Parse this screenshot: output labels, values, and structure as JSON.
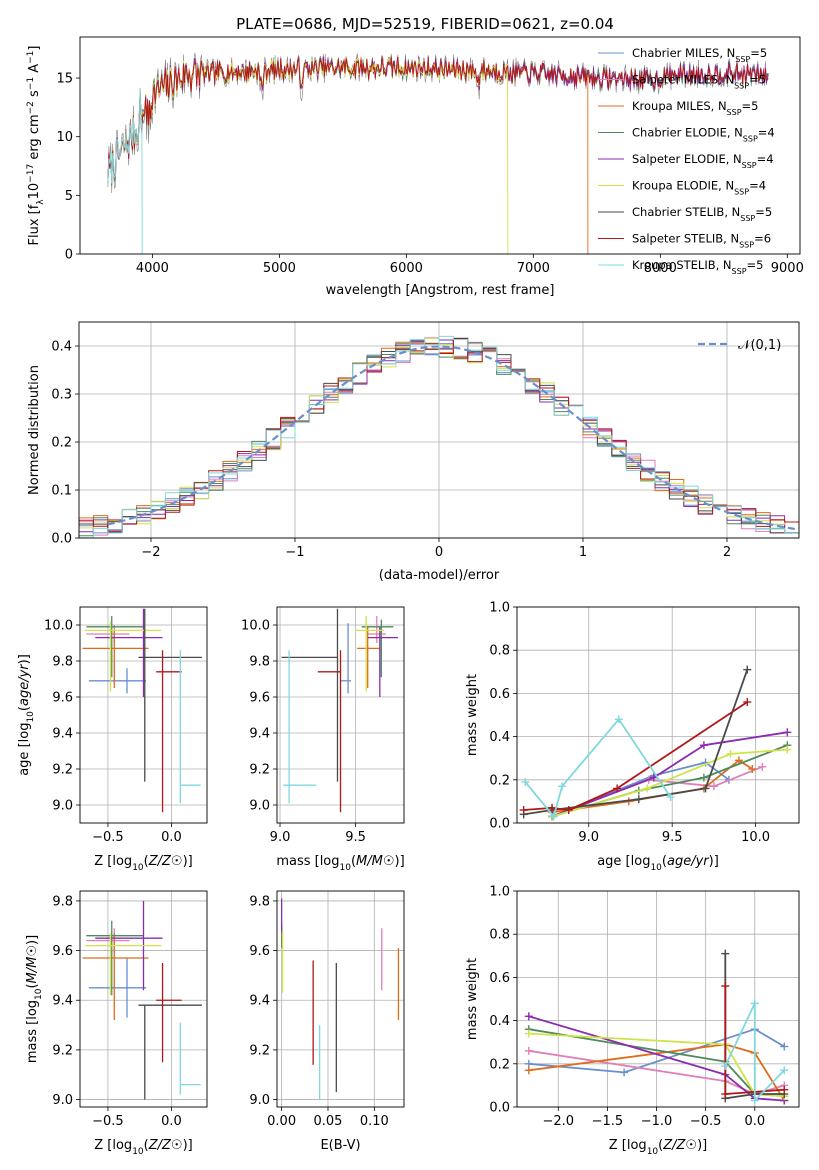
{
  "title": "PLATE=0686, MJD=52519, FIBERID=0621, z=0.04",
  "colors": [
    "#6a8fcf",
    "#e07fb8",
    "#e06c1a",
    "#4f8a5a",
    "#8a2bb0",
    "#cfe34a",
    "#4a4a4a",
    "#b01818",
    "#7fd8df"
  ],
  "spectrum_colors": [
    "#6a8fcf",
    "#e07fb8",
    "#e06c1a",
    "#4f8a5a",
    "#8a2bb0",
    "#cfe34a",
    "#808080",
    "#b01818",
    "#7fd8df"
  ],
  "legend": [
    {
      "label": "Chabrier MILES, N",
      "sub": "SSP",
      "suffix": "=5"
    },
    {
      "label": "Salpeter MILES, N",
      "sub": "SSP",
      "suffix": "=5"
    },
    {
      "label": "Kroupa MILES, N",
      "sub": "SSP",
      "suffix": "=5"
    },
    {
      "label": "Chabrier ELODIE, N",
      "sub": "SSP",
      "suffix": "=4"
    },
    {
      "label": "Salpeter ELODIE, N",
      "sub": "SSP",
      "suffix": "=4"
    },
    {
      "label": "Kroupa ELODIE, N",
      "sub": "SSP",
      "suffix": "=4"
    },
    {
      "label": "Chabrier STELIB, N",
      "sub": "SSP",
      "suffix": "=5"
    },
    {
      "label": "Salpeter STELIB, N",
      "sub": "SSP",
      "suffix": "=6"
    },
    {
      "label": "Kroupa STELIB, N",
      "sub": "SSP",
      "suffix": "=5"
    }
  ],
  "chart_data": [
    {
      "id": "spectrum",
      "type": "line",
      "title": "PLATE=0686, MJD=52519, FIBERID=0621, z=0.04",
      "xlabel": "wavelength [Angstrom, rest frame]",
      "ylabel_parts": [
        "Flux [f",
        "λ",
        "10",
        "−17",
        " erg cm",
        "−2",
        " s",
        "−1",
        " A",
        "−1",
        "]"
      ],
      "xlim": [
        3430,
        9100
      ],
      "ylim": [
        0,
        18.5
      ],
      "xticks": [
        4000,
        5000,
        6000,
        7000,
        8000,
        9000
      ],
      "yticks": [
        0,
        5,
        10,
        15
      ],
      "wave_range": [
        3650,
        8850
      ],
      "drops": [
        {
          "series": 8,
          "x": 3920
        },
        {
          "series": 5,
          "x": 6800
        },
        {
          "series": 2,
          "x": 7430
        }
      ],
      "legend_position": "upper right",
      "grid": false
    },
    {
      "id": "residuals",
      "type": "line",
      "xlabel": "(data-model)/error",
      "ylabel": "Normed distribution",
      "xlim": [
        -2.5,
        2.5
      ],
      "ylim": [
        0,
        0.45
      ],
      "xticks": [
        -2,
        -1,
        0,
        1,
        2
      ],
      "xtick_labels": [
        "−2",
        "−1",
        "0",
        "1",
        "2"
      ],
      "yticks": [
        0.0,
        0.1,
        0.2,
        0.3,
        0.4
      ],
      "ytick_labels": [
        "0.0",
        "0.1",
        "0.2",
        "0.3",
        "0.4"
      ],
      "bin_width": 0.1,
      "reference_curve": "normal(0,1)",
      "legend": "𝒩(0,1)",
      "legend_position": "upper right",
      "grid": true
    },
    {
      "id": "age_vs_Z",
      "type": "scatter",
      "xlabel": "Z [log10(Z/Z☉)]",
      "ylabel": "age [log10(age/yr)]",
      "xlim": [
        -0.72,
        0.28
      ],
      "ylim": [
        8.9,
        10.1
      ],
      "xticks": [
        -0.5,
        0.0
      ],
      "xtick_labels": [
        "−0.5",
        "0.0"
      ],
      "yticks": [
        9.0,
        9.2,
        9.4,
        9.6,
        9.8,
        10.0
      ],
      "ytick_labels": [
        "9.0",
        "9.2",
        "9.4",
        "9.6",
        "9.8",
        "10.0"
      ],
      "points": [
        {
          "x": -0.35,
          "xerr": [
            0.3,
            0.15
          ],
          "y": 9.69,
          "yerr": [
            0.07,
            0.07
          ],
          "c": 0
        },
        {
          "x": -0.45,
          "xerr": [
            0.22,
            0.12
          ],
          "y": 9.95,
          "yerr": [
            0.05,
            0.05
          ],
          "c": 1
        },
        {
          "x": -0.45,
          "xerr": [
            0.25,
            0.27
          ],
          "y": 9.87,
          "yerr": [
            0.22,
            0.1
          ],
          "c": 2
        },
        {
          "x": -0.47,
          "xerr": [
            0.2,
            0.25
          ],
          "y": 9.99,
          "yerr": [
            0.28,
            0.06
          ],
          "c": 3
        },
        {
          "x": -0.22,
          "xerr": [
            0.38,
            0.15
          ],
          "y": 9.93,
          "yerr": [
            0.33,
            0.16
          ],
          "c": 4
        },
        {
          "x": -0.48,
          "xerr": [
            0.2,
            0.4
          ],
          "y": 9.97,
          "yerr": [
            0.34,
            0.05
          ],
          "c": 5
        },
        {
          "x": -0.21,
          "xerr": [
            0.05,
            0.45
          ],
          "y": 9.82,
          "yerr": [
            0.69,
            0.27
          ],
          "c": 6
        },
        {
          "x": -0.07,
          "xerr": [
            0.05,
            0.15
          ],
          "y": 9.74,
          "yerr": [
            0.78,
            0.12
          ],
          "c": 7
        },
        {
          "x": 0.07,
          "xerr": [
            0.0,
            0.16
          ],
          "y": 9.11,
          "yerr": [
            0.1,
            0.75
          ],
          "c": 8
        }
      ],
      "grid": true
    },
    {
      "id": "age_vs_mass",
      "type": "scatter",
      "xlabel": "mass [log10(M/M☉)]",
      "xlim": [
        8.98,
        9.82
      ],
      "ylim": [
        8.9,
        10.1
      ],
      "xticks": [
        9.0,
        9.5
      ],
      "xtick_labels": [
        "9.0",
        "9.5"
      ],
      "yticks": [
        9.0,
        9.2,
        9.4,
        9.6,
        9.8,
        10.0
      ],
      "ytick_labels": [
        "9.0",
        "9.2",
        "9.4",
        "9.6",
        "9.8",
        "10.0"
      ],
      "points": [
        {
          "x": 9.45,
          "xerr": [
            0.05,
            0.02
          ],
          "y": 9.69,
          "yerr": [
            0.07,
            0.32
          ],
          "c": 0
        },
        {
          "x": 9.64,
          "xerr": [
            0.06,
            0.06
          ],
          "y": 9.95,
          "yerr": [
            0.05,
            0.1
          ],
          "c": 1
        },
        {
          "x": 9.58,
          "xerr": [
            0.07,
            0.08
          ],
          "y": 9.87,
          "yerr": [
            0.22,
            0.12
          ],
          "c": 2
        },
        {
          "x": 9.67,
          "xerr": [
            0.13,
            0.08
          ],
          "y": 9.99,
          "yerr": [
            0.28,
            0.04
          ],
          "c": 3
        },
        {
          "x": 9.66,
          "xerr": [
            0.08,
            0.12
          ],
          "y": 9.93,
          "yerr": [
            0.33,
            0.06
          ],
          "c": 4
        },
        {
          "x": 9.57,
          "xerr": [
            0.07,
            0.12
          ],
          "y": 9.97,
          "yerr": [
            0.34,
            0.08
          ],
          "c": 5
        },
        {
          "x": 9.38,
          "xerr": [
            0.37,
            0.0
          ],
          "y": 9.82,
          "yerr": [
            0.69,
            0.27
          ],
          "c": 6
        },
        {
          "x": 9.4,
          "xerr": [
            0.15,
            0.0
          ],
          "y": 9.74,
          "yerr": [
            0.78,
            0.12
          ],
          "c": 7
        },
        {
          "x": 9.06,
          "xerr": [
            0.04,
            0.18
          ],
          "y": 9.11,
          "yerr": [
            0.1,
            0.75
          ],
          "c": 8
        }
      ],
      "grid": true
    },
    {
      "id": "mass_weight_vs_age",
      "type": "line",
      "xlabel": "age [log10(age/yr)]",
      "ylabel": "mass weight",
      "xlim": [
        8.57,
        10.26
      ],
      "ylim": [
        0,
        1
      ],
      "xticks": [
        9.0,
        9.5,
        10.0
      ],
      "xtick_labels": [
        "9.0",
        "9.5",
        "10.0"
      ],
      "yticks": [
        0.0,
        0.2,
        0.4,
        0.6,
        0.8,
        1.0
      ],
      "ytick_labels": [
        "0.0",
        "0.2",
        "0.4",
        "0.6",
        "0.8",
        "1.0"
      ],
      "series": [
        {
          "c": 0,
          "x": [
            8.78,
            9.39,
            9.7,
            9.84
          ],
          "y": [
            0.03,
            0.22,
            0.28,
            0.2
          ]
        },
        {
          "c": 1,
          "x": [
            8.78,
            9.36,
            9.75,
            10.04
          ],
          "y": [
            0.03,
            0.2,
            0.17,
            0.26
          ]
        },
        {
          "c": 2,
          "x": [
            8.78,
            9.24,
            9.69,
            9.9,
            9.98
          ],
          "y": [
            0.05,
            0.1,
            0.16,
            0.29,
            0.25
          ]
        },
        {
          "c": 3,
          "x": [
            8.78,
            9.3,
            9.69,
            10.19
          ],
          "y": [
            0.03,
            0.15,
            0.21,
            0.36
          ]
        },
        {
          "c": 4,
          "x": [
            8.78,
            9.39,
            9.69,
            10.19
          ],
          "y": [
            0.03,
            0.21,
            0.36,
            0.42
          ]
        },
        {
          "c": 5,
          "x": [
            8.78,
            9.35,
            9.85,
            10.19
          ],
          "y": [
            0.03,
            0.16,
            0.32,
            0.34
          ]
        },
        {
          "c": 6,
          "x": [
            8.61,
            8.78,
            9.3,
            9.7,
            9.95
          ],
          "y": [
            0.04,
            0.06,
            0.11,
            0.16,
            0.71
          ]
        },
        {
          "c": 7,
          "x": [
            8.61,
            8.78,
            8.88,
            9.17,
            9.95
          ],
          "y": [
            0.06,
            0.07,
            0.06,
            0.16,
            0.56
          ]
        },
        {
          "c": 8,
          "x": [
            8.62,
            8.79,
            8.84,
            9.18,
            9.49
          ],
          "y": [
            0.19,
            0.03,
            0.17,
            0.48,
            0.12
          ]
        }
      ],
      "grid": true
    },
    {
      "id": "mass_vs_Z",
      "type": "scatter",
      "xlabel": "Z [log10(Z/Z☉)]",
      "ylabel": "mass [log10(M/M☉)]",
      "xlim": [
        -0.72,
        0.28
      ],
      "ylim": [
        8.97,
        9.84
      ],
      "xticks": [
        -0.5,
        0.0
      ],
      "xtick_labels": [
        "−0.5",
        "0.0"
      ],
      "yticks": [
        9.0,
        9.2,
        9.4,
        9.6,
        9.8
      ],
      "ytick_labels": [
        "9.0",
        "9.2",
        "9.4",
        "9.6",
        "9.8"
      ],
      "points": [
        {
          "x": -0.35,
          "xerr": [
            0.3,
            0.15
          ],
          "y": 9.45,
          "yerr": [
            0.12,
            0.12
          ],
          "c": 0
        },
        {
          "x": -0.45,
          "xerr": [
            0.22,
            0.12
          ],
          "y": 9.64,
          "yerr": [
            0.05,
            0.05
          ],
          "c": 1
        },
        {
          "x": -0.45,
          "xerr": [
            0.25,
            0.27
          ],
          "y": 9.57,
          "yerr": [
            0.25,
            0.1
          ],
          "c": 2
        },
        {
          "x": -0.47,
          "xerr": [
            0.2,
            0.25
          ],
          "y": 9.66,
          "yerr": [
            0.24,
            0.06
          ],
          "c": 3
        },
        {
          "x": -0.22,
          "xerr": [
            0.38,
            0.15
          ],
          "y": 9.65,
          "yerr": [
            0.21,
            0.15
          ],
          "c": 4
        },
        {
          "x": -0.48,
          "xerr": [
            0.2,
            0.4
          ],
          "y": 9.62,
          "yerr": [
            0.2,
            0.05
          ],
          "c": 5
        },
        {
          "x": -0.21,
          "xerr": [
            0.05,
            0.45
          ],
          "y": 9.38,
          "yerr": [
            0.38,
            0.0
          ],
          "c": 6
        },
        {
          "x": -0.07,
          "xerr": [
            0.05,
            0.15
          ],
          "y": 9.4,
          "yerr": [
            0.25,
            0.15
          ],
          "c": 7
        },
        {
          "x": 0.07,
          "xerr": [
            0.0,
            0.16
          ],
          "y": 9.06,
          "yerr": [
            0.04,
            0.25
          ],
          "c": 8
        }
      ],
      "grid": true
    },
    {
      "id": "mass_vs_EBV",
      "type": "scatter",
      "xlabel": "E(B-V)",
      "xlim": [
        -0.005,
        0.132
      ],
      "ylim": [
        8.97,
        9.84
      ],
      "xticks": [
        0.0,
        0.05,
        0.1
      ],
      "xtick_labels": [
        "0.00",
        "0.05",
        "0.10"
      ],
      "yticks": [
        9.0,
        9.2,
        9.4,
        9.6,
        9.8
      ],
      "ytick_labels": [
        "9.0",
        "9.2",
        "9.4",
        "9.6",
        "9.8"
      ],
      "points": [
        {
          "x": 0.0,
          "y": 9.66,
          "yerr": [
            0.04,
            0.03
          ],
          "c": 0
        },
        {
          "x": 0.108,
          "y": 9.57,
          "yerr": [
            0.13,
            0.12
          ],
          "c": 1
        },
        {
          "x": 0.126,
          "y": 9.46,
          "yerr": [
            0.14,
            0.15
          ],
          "c": 2
        },
        {
          "x": 0.0,
          "y": 9.66,
          "yerr": [
            0.05,
            0.05
          ],
          "c": 3
        },
        {
          "x": 0.0,
          "y": 9.73,
          "yerr": [
            0.06,
            0.08
          ],
          "c": 4
        },
        {
          "x": 0.001,
          "y": 9.55,
          "yerr": [
            0.12,
            0.13
          ],
          "c": 5
        },
        {
          "x": 0.059,
          "y": 9.29,
          "yerr": [
            0.26,
            0.26
          ],
          "c": 6
        },
        {
          "x": 0.034,
          "y": 9.35,
          "yerr": [
            0.21,
            0.21
          ],
          "c": 7
        },
        {
          "x": 0.041,
          "y": 9.15,
          "yerr": [
            0.15,
            0.15
          ],
          "c": 8
        }
      ],
      "grid": true
    },
    {
      "id": "mass_weight_vs_Z",
      "type": "line",
      "xlabel": "Z [log10(Z/Z☉)]",
      "ylabel": "mass weight",
      "xlim": [
        -2.42,
        0.45
      ],
      "ylim": [
        0,
        1
      ],
      "xticks": [
        -2.0,
        -1.5,
        -1.0,
        -0.5,
        0.0
      ],
      "xtick_labels": [
        "−2.0",
        "−1.5",
        "−1.0",
        "−0.5",
        "0.0"
      ],
      "yticks": [
        0.0,
        0.2,
        0.4,
        0.6,
        0.8,
        1.0
      ],
      "ytick_labels": [
        "0.0",
        "0.2",
        "0.4",
        "0.6",
        "0.8",
        "1.0"
      ],
      "series": [
        {
          "c": 0,
          "x": [
            -2.3,
            -1.33,
            0.0,
            0.3
          ],
          "y": [
            0.2,
            0.16,
            0.36,
            0.28
          ]
        },
        {
          "c": 1,
          "x": [
            -2.3,
            -0.3,
            0.0,
            0.3
          ],
          "y": [
            0.26,
            0.12,
            0.06,
            0.1
          ]
        },
        {
          "c": 2,
          "x": [
            -2.3,
            -0.3,
            0.0,
            0.3
          ],
          "y": [
            0.17,
            0.29,
            0.25,
            0.03
          ]
        },
        {
          "c": 3,
          "x": [
            -2.3,
            -0.3,
            0.0,
            0.3
          ],
          "y": [
            0.36,
            0.21,
            0.06,
            0.05
          ]
        },
        {
          "c": 4,
          "x": [
            -2.3,
            -0.3,
            0.0,
            0.3
          ],
          "y": [
            0.42,
            0.15,
            0.04,
            0.03
          ]
        },
        {
          "c": 5,
          "x": [
            -2.3,
            -0.3,
            0.0,
            0.3
          ],
          "y": [
            0.34,
            0.29,
            0.06,
            0.05
          ]
        },
        {
          "c": 6,
          "x": [
            -0.3,
            -0.3,
            0.0,
            0.3
          ],
          "y": [
            0.71,
            0.04,
            0.06,
            0.06
          ]
        },
        {
          "c": 7,
          "x": [
            -0.3,
            -0.3,
            0.0,
            0.3
          ],
          "y": [
            0.56,
            0.06,
            0.07,
            0.08
          ]
        },
        {
          "c": 8,
          "x": [
            -0.3,
            0.0,
            0.0,
            0.3
          ],
          "y": [
            0.19,
            0.48,
            0.03,
            0.17
          ]
        }
      ],
      "grid": true
    }
  ]
}
